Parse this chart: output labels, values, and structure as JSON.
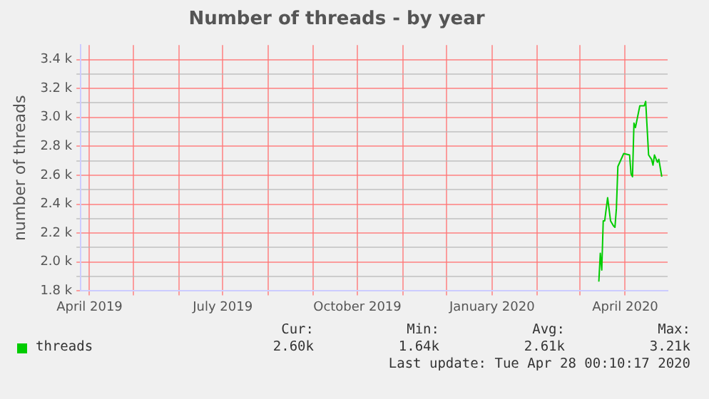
{
  "chart_data": {
    "type": "line",
    "title": "Number of threads - by year",
    "ylabel": "number of threads",
    "x": [
      "2020-03-14",
      "2020-03-15",
      "2020-03-16",
      "2020-03-17",
      "2020-03-18",
      "2020-03-20",
      "2020-03-22",
      "2020-03-24",
      "2020-03-25",
      "2020-03-26",
      "2020-03-27",
      "2020-03-31",
      "2020-04-04",
      "2020-04-05",
      "2020-04-06",
      "2020-04-07",
      "2020-04-08",
      "2020-04-11",
      "2020-04-14",
      "2020-04-15",
      "2020-04-17",
      "2020-04-19",
      "2020-04-20",
      "2020-04-21",
      "2020-04-23",
      "2020-04-24",
      "2020-04-26"
    ],
    "series": [
      {
        "name": "threads",
        "color": "#00cc00",
        "values": [
          1865,
          2060,
          1945,
          2285,
          2285,
          2445,
          2285,
          2250,
          2240,
          2370,
          2660,
          2750,
          2740,
          2610,
          2590,
          2960,
          2930,
          3080,
          3080,
          3110,
          2740,
          2710,
          2670,
          2740,
          2690,
          2710,
          2590
        ]
      }
    ],
    "xlim": [
      "2019-03-26",
      "2020-04-30"
    ],
    "xticks": [
      {
        "value": "2019-04",
        "label": "April 2019"
      },
      {
        "value": "2019-05",
        "label": null
      },
      {
        "value": "2019-06",
        "label": null
      },
      {
        "value": "2019-07",
        "label": "July 2019"
      },
      {
        "value": "2019-08",
        "label": null
      },
      {
        "value": "2019-09",
        "label": null
      },
      {
        "value": "2019-10",
        "label": "October 2019"
      },
      {
        "value": "2019-11",
        "label": null
      },
      {
        "value": "2019-12",
        "label": null
      },
      {
        "value": "2020-01",
        "label": "January 2020"
      },
      {
        "value": "2020-02",
        "label": null
      },
      {
        "value": "2020-03",
        "label": null
      },
      {
        "value": "2020-04",
        "label": "April 2020"
      }
    ],
    "ylim": [
      1800,
      3500
    ],
    "yticks": [
      {
        "value": 1800,
        "label": "1.8 k"
      },
      {
        "value": 1900,
        "label": null
      },
      {
        "value": 2000,
        "label": "2.0 k"
      },
      {
        "value": 2100,
        "label": null
      },
      {
        "value": 2200,
        "label": "2.2 k"
      },
      {
        "value": 2300,
        "label": null
      },
      {
        "value": 2400,
        "label": "2.4 k"
      },
      {
        "value": 2500,
        "label": null
      },
      {
        "value": 2600,
        "label": "2.6 k"
      },
      {
        "value": 2700,
        "label": null
      },
      {
        "value": 2800,
        "label": "2.8 k"
      },
      {
        "value": 2900,
        "label": null
      },
      {
        "value": 3000,
        "label": "3.0 k"
      },
      {
        "value": 3100,
        "label": null
      },
      {
        "value": 3200,
        "label": "3.2 k"
      },
      {
        "value": 3300,
        "label": null
      },
      {
        "value": 3400,
        "label": "3.4 k"
      }
    ],
    "grid": true,
    "legend": "bottom left",
    "marker": "none",
    "line_style": "solid",
    "annotations": [
      "Cur:",
      "2.60k",
      "Min:",
      "1.64k",
      "Avg:",
      "2.61k",
      "Max:",
      "3.21k",
      "Last update: Tue Apr 28 00:10:17 2020"
    ]
  }
}
